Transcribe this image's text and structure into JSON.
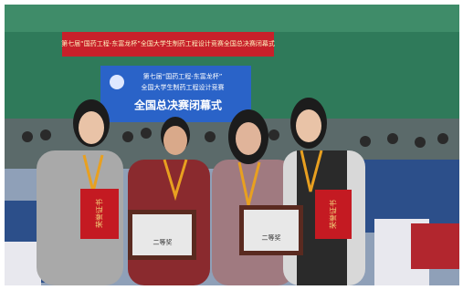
{
  "banner": {
    "text": "第七届“国药工程-东富龙杯”全国大学生制药工程设计竞赛全国总决赛闭幕式"
  },
  "screen": {
    "line1": "第七届“国药工程-东富龙杯”",
    "line2": "全国大学生制药工程设计竞赛",
    "line3": "全国总决赛闭幕式"
  },
  "certificates": [
    {
      "text": "荣誉证书"
    },
    {
      "text": "荣誉证书"
    }
  ],
  "plaques": [
    {
      "text": "二等奖"
    },
    {
      "text": "二等奖"
    }
  ]
}
